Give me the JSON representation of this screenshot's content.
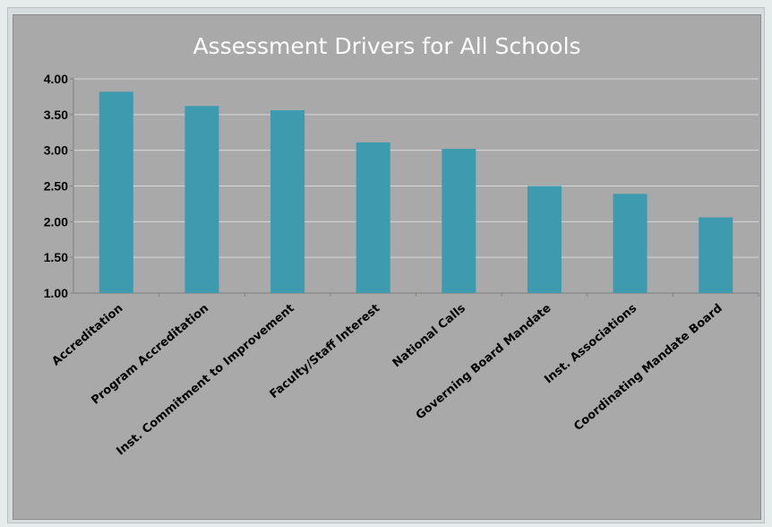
{
  "chart_data": {
    "type": "bar",
    "title": "Assessment Drivers for All Schools",
    "categories": [
      "Accreditation",
      "Program Accreditation",
      "Inst. Commitment to Improvement",
      "Faculty/Staff Interest",
      "National Calls",
      "Governing Board Mandate",
      "Inst. Associations",
      "Coordinating Mandate Board"
    ],
    "values": [
      3.82,
      3.62,
      3.56,
      3.11,
      3.02,
      2.5,
      2.39,
      2.06
    ],
    "ylim": [
      1.0,
      4.0
    ],
    "yticks": [
      "1.00",
      "1.50",
      "2.00",
      "2.50",
      "3.00",
      "3.50",
      "4.00"
    ],
    "xlabel": "",
    "ylabel": "",
    "grid": true,
    "bar_color": "#3e9aae",
    "background_color": "#a9a9a9",
    "grid_color": "#d8d8d8"
  }
}
